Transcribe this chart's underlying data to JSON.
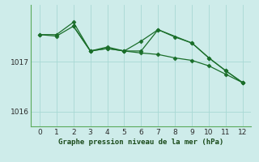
{
  "background_color": "#ceecea",
  "grid_color": "#a8d8d4",
  "line_color": "#1a6e2a",
  "line1_x": [
    0,
    1,
    2,
    3,
    4,
    5,
    6,
    7,
    8,
    9,
    10,
    11,
    12
  ],
  "line1_y": [
    1017.55,
    1017.55,
    1017.8,
    1017.22,
    1017.27,
    1017.22,
    1017.22,
    1017.65,
    1017.5,
    1017.38,
    1017.08,
    1016.82,
    1016.58
  ],
  "line2_x": [
    0,
    1,
    2,
    3,
    4,
    5,
    6,
    7,
    8,
    9,
    10,
    11,
    12
  ],
  "line2_y": [
    1017.55,
    1017.52,
    1017.72,
    1017.22,
    1017.27,
    1017.22,
    1017.18,
    1017.15,
    1017.08,
    1017.03,
    1016.92,
    1016.75,
    1016.58
  ],
  "line3_x": [
    2,
    3,
    4,
    5,
    6,
    7,
    9,
    10,
    11,
    12
  ],
  "line3_y": [
    1017.72,
    1017.22,
    1017.3,
    1017.22,
    1017.42,
    1017.65,
    1017.38,
    1017.08,
    1016.82,
    1016.58
  ],
  "xlabel": "Graphe pression niveau de la mer (hPa)",
  "yticks": [
    1016,
    1017
  ],
  "xticks": [
    0,
    1,
    2,
    3,
    4,
    5,
    6,
    7,
    8,
    9,
    10,
    11,
    12
  ],
  "xlim": [
    -0.5,
    12.5
  ],
  "ylim": [
    1015.7,
    1018.15
  ],
  "figsize": [
    3.2,
    2.0
  ],
  "dpi": 100
}
